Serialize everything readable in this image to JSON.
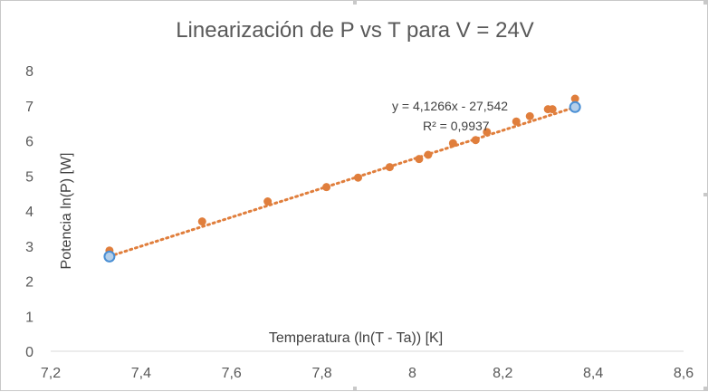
{
  "chart_data": {
    "type": "scatter",
    "title": "Linearización de P vs T para V = 24V",
    "xlabel": "Temperatura (ln(T - Ta)) [K]",
    "ylabel": "Potencia ln(P) [W]",
    "xlim": [
      7.2,
      8.6
    ],
    "ylim": [
      0,
      8
    ],
    "x_ticks": [
      "7,2",
      "7,4",
      "7,6",
      "7,8",
      "8",
      "8,2",
      "8,4",
      "8,6"
    ],
    "y_ticks": [
      "0",
      "1",
      "2",
      "3",
      "4",
      "5",
      "6",
      "7",
      "8"
    ],
    "grid": false,
    "series": [
      {
        "color": "#e07e3c",
        "points": [
          {
            "x": 7.33,
            "y": 2.87
          },
          {
            "x": 7.535,
            "y": 3.7
          },
          {
            "x": 7.68,
            "y": 4.27
          },
          {
            "x": 7.81,
            "y": 4.68
          },
          {
            "x": 7.88,
            "y": 4.95
          },
          {
            "x": 7.95,
            "y": 5.25
          },
          {
            "x": 8.015,
            "y": 5.48
          },
          {
            "x": 8.035,
            "y": 5.6
          },
          {
            "x": 8.09,
            "y": 5.93
          },
          {
            "x": 8.14,
            "y": 6.02
          },
          {
            "x": 8.165,
            "y": 6.25
          },
          {
            "x": 8.23,
            "y": 6.55
          },
          {
            "x": 8.26,
            "y": 6.7
          },
          {
            "x": 8.3,
            "y": 6.9
          },
          {
            "x": 8.31,
            "y": 6.9
          },
          {
            "x": 8.36,
            "y": 7.2
          }
        ]
      }
    ],
    "highlighted_points": {
      "color": "#b4cfea",
      "edge_color": "#4a8fd4",
      "points": [
        {
          "x": 7.33,
          "y": 2.7
        },
        {
          "x": 8.36,
          "y": 6.96
        }
      ]
    },
    "trendline": {
      "type": "linear",
      "style": "dotted",
      "color": "#e07e3c",
      "x_range": [
        7.33,
        8.36
      ],
      "equation": "y = 4,1266x - 27,542",
      "r_squared": "R² = 0,9937"
    }
  }
}
